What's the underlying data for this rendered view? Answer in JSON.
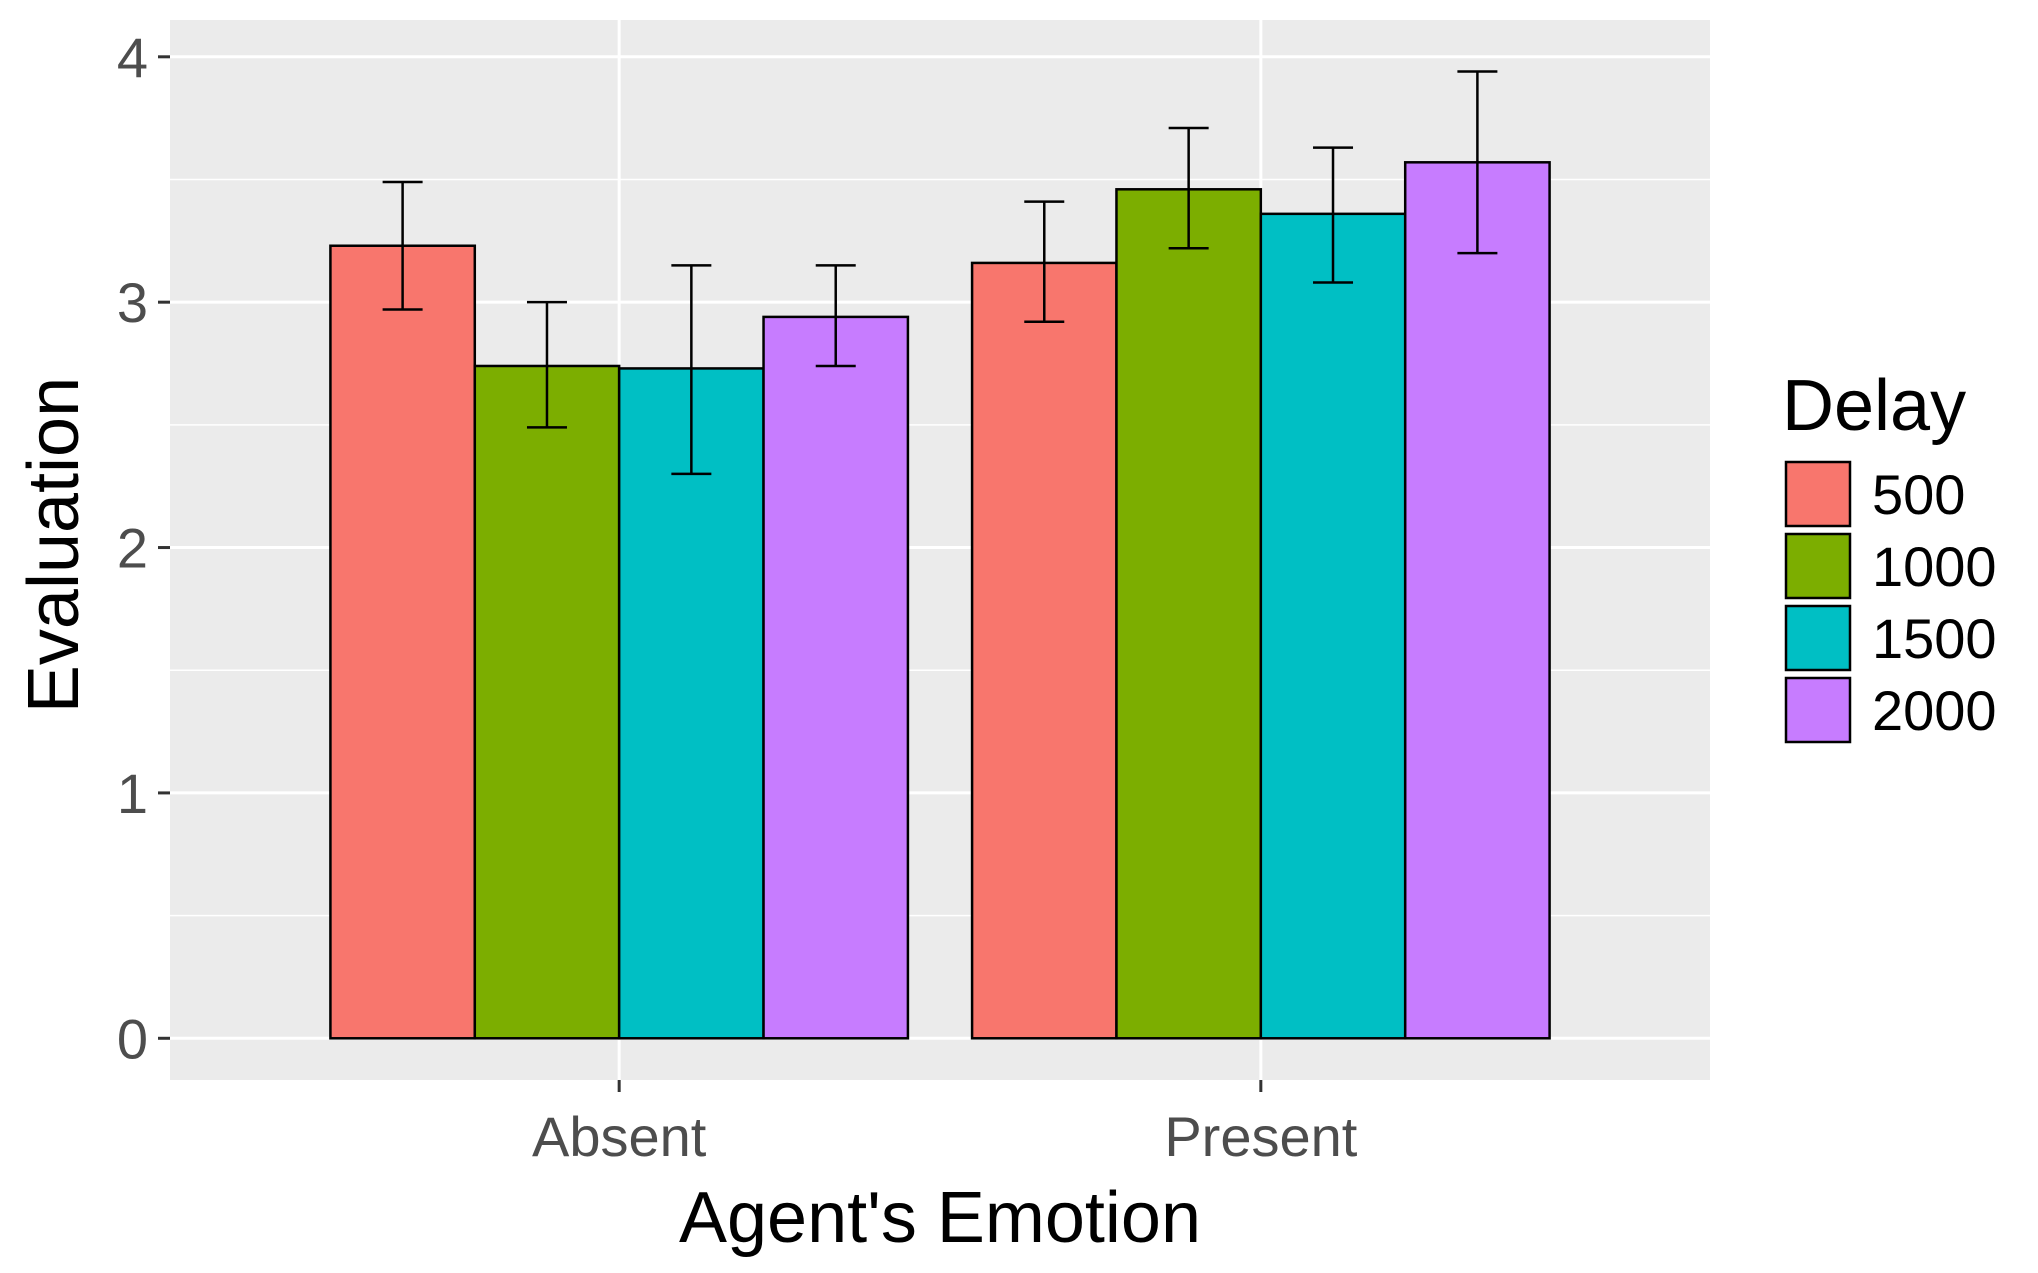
{
  "chart_data": {
    "type": "bar",
    "title": "",
    "xlabel": "Agent's Emotion",
    "ylabel": "Evaluation",
    "categories": [
      "Absent",
      "Present"
    ],
    "ylim": [
      -0.17,
      4.15
    ],
    "yticks": [
      0,
      1,
      2,
      3,
      4
    ],
    "grid": true,
    "legend": {
      "title": "Delay",
      "position": "right"
    },
    "series": [
      {
        "name": "500",
        "color": "#F8766D",
        "values": [
          3.23,
          3.16
        ],
        "error_low": [
          2.97,
          2.92
        ],
        "error_high": [
          3.49,
          3.41
        ]
      },
      {
        "name": "1000",
        "color": "#7CAE00",
        "values": [
          2.74,
          3.46
        ],
        "error_low": [
          2.49,
          3.22
        ],
        "error_high": [
          3.0,
          3.71
        ]
      },
      {
        "name": "1500",
        "color": "#00BFC4",
        "values": [
          2.73,
          3.36
        ],
        "error_low": [
          2.3,
          3.08
        ],
        "error_high": [
          3.15,
          3.63
        ]
      },
      {
        "name": "2000",
        "color": "#C77CFF",
        "values": [
          2.94,
          3.57
        ],
        "error_low": [
          2.74,
          3.2
        ],
        "error_high": [
          3.15,
          3.94
        ]
      }
    ]
  }
}
